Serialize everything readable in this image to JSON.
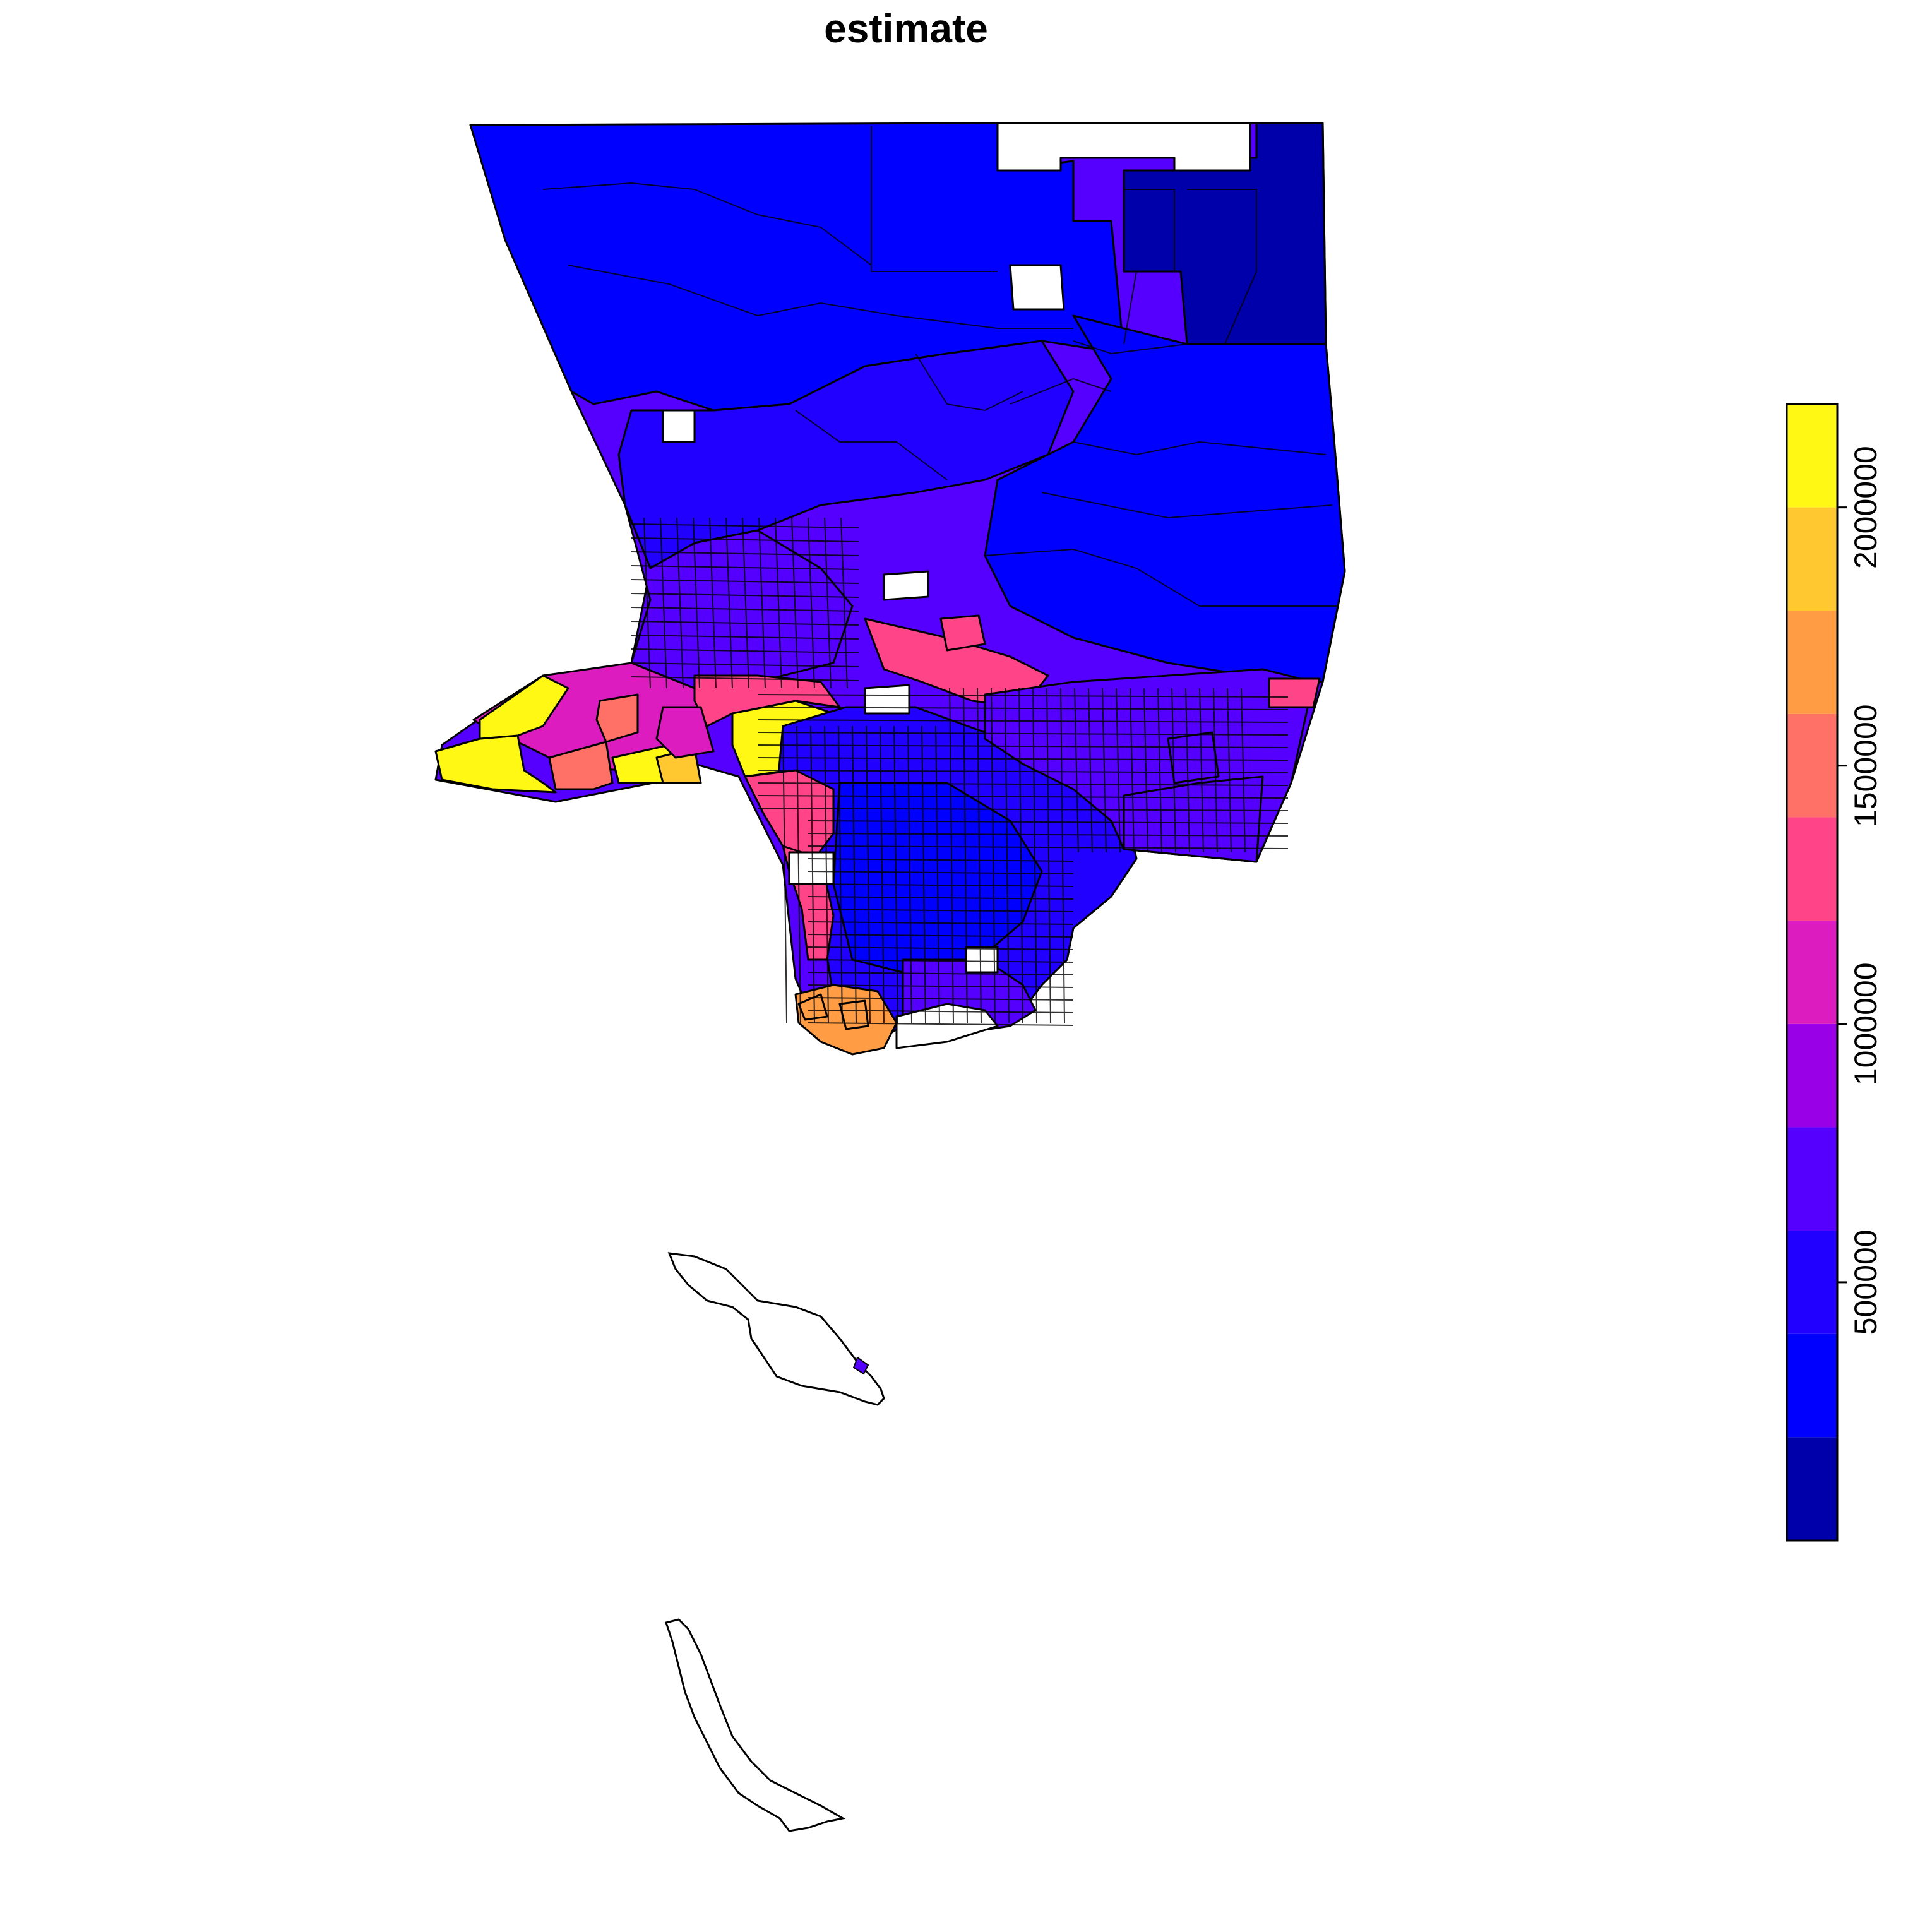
{
  "title": "estimate",
  "legend": {
    "breaks": [
      200000,
      400000,
      600000,
      800000,
      1000000,
      1200000,
      1400000,
      1600000,
      1800000,
      2000000,
      2200000
    ],
    "range": [
      0,
      2200000
    ],
    "tick_values": [
      500000,
      1000000,
      1500000,
      2000000
    ],
    "tick_labels": [
      "500000",
      "1000000",
      "1500000",
      "2000000"
    ],
    "colors": [
      "#0000AA",
      "#0000FF",
      "#2200FF",
      "#5500FF",
      "#9900E8",
      "#DD1CC0",
      "#FF4488",
      "#FF7066",
      "#FF9C44",
      "#FFC830",
      "#FFF814"
    ]
  },
  "regions": [
    {
      "id": "antelope-valley-east",
      "class": 0
    },
    {
      "id": "antelope-valley-northeast",
      "class": 0
    },
    {
      "id": "antelope-valley-north",
      "class": 1
    },
    {
      "id": "santa-clarita",
      "class": 2
    },
    {
      "id": "angeles-forest",
      "class": 1
    },
    {
      "id": "san-fernando-valley",
      "class": 3
    },
    {
      "id": "malibu-coast",
      "class": 10
    },
    {
      "id": "santa-monica-mountains",
      "class": 5
    },
    {
      "id": "pacific-palisades",
      "class": 7
    },
    {
      "id": "brentwood-bel-air",
      "class": 10
    },
    {
      "id": "beverly-hills",
      "class": 9
    },
    {
      "id": "hollywood-hills",
      "class": 6
    },
    {
      "id": "central-la",
      "class": 2
    },
    {
      "id": "south-la",
      "class": 1
    },
    {
      "id": "san-gabriel-valley",
      "class": 3
    },
    {
      "id": "pasadena-foothills",
      "class": 6
    },
    {
      "id": "east-county",
      "class": 3
    },
    {
      "id": "palos-verdes",
      "class": 8
    },
    {
      "id": "long-beach",
      "class": 3
    },
    {
      "id": "beach-cities",
      "class": 6
    },
    {
      "id": "diamond-bar",
      "class": 6
    },
    {
      "id": "santa-catalina-island",
      "class": null
    },
    {
      "id": "san-clemente-island",
      "class": null
    }
  ]
}
